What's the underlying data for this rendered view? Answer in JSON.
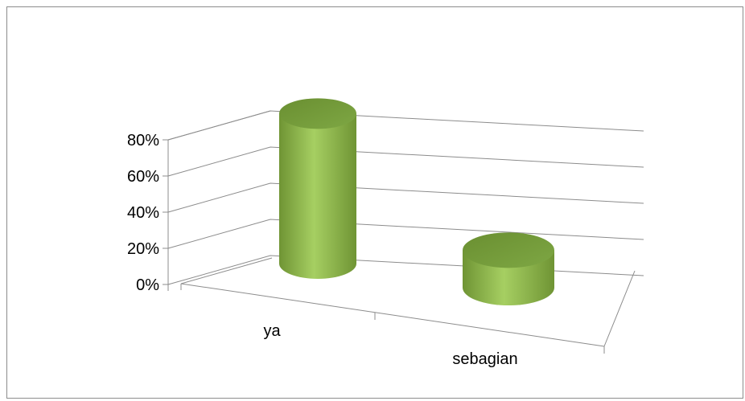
{
  "chart_data": {
    "type": "bar",
    "style": "3d-cylinder",
    "categories": [
      "ya",
      "sebagian"
    ],
    "values": [
      0.8,
      0.2
    ],
    "ylim": [
      0,
      0.8
    ],
    "yticks": [
      "0%",
      "20%",
      "40%",
      "60%",
      "80%"
    ],
    "grid": true,
    "legend": "none",
    "bar_color": "#8db94a"
  }
}
